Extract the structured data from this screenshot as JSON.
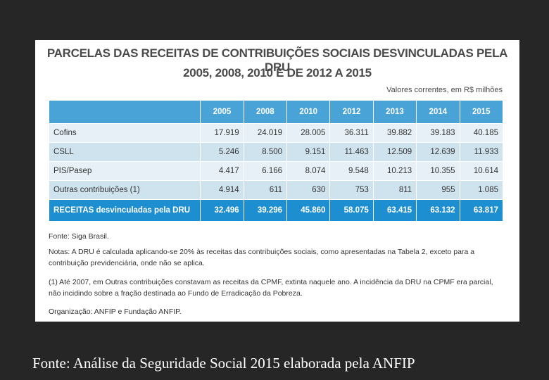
{
  "table": {
    "title_line1": "PARCELAS DAS RECEITAS DE CONTRIBUIÇÕES SOCIAIS DESVINCULADAS PELA DRU",
    "title_line2": "2005, 2008, 2010 E DE 2012 A 2015",
    "units": "Valores correntes, em R$ milhões",
    "years": [
      "2005",
      "2008",
      "2010",
      "2012",
      "2013",
      "2014",
      "2015"
    ],
    "rows": [
      {
        "label": "Cofins",
        "values": [
          "17.919",
          "24.019",
          "28.005",
          "36.311",
          "39.882",
          "39.183",
          "40.185"
        ]
      },
      {
        "label": "CSLL",
        "values": [
          "5.246",
          "8.500",
          "9.151",
          "11.463",
          "12.509",
          "12.639",
          "11.933"
        ]
      },
      {
        "label": "PIS/Pasep",
        "values": [
          "4.417",
          "6.166",
          "8.074",
          "9.548",
          "10.213",
          "10.355",
          "10.614"
        ]
      },
      {
        "label": "Outras contribuições (1)",
        "values": [
          "4.914",
          "611",
          "630",
          "753",
          "811",
          "955",
          "1.085"
        ]
      }
    ],
    "total": {
      "label": "RECEITAS desvinculadas pela DRU",
      "values": [
        "32.496",
        "39.296",
        "45.860",
        "58.075",
        "63.415",
        "63.132",
        "63.817"
      ]
    }
  },
  "notes": {
    "source": "Fonte: Siga Brasil.",
    "note": "Notas: A DRU é calculada aplicando-se 20% às receitas das contribuições sociais, como apresentadas na Tabela 2, exceto para a contribuição previdenciária, onde não se aplica.",
    "footnote": "(1) Até 2007, em Outras contribuições constavam as receitas da CPMF, extinta naquele ano. A incidência da DRU na CPMF era parcial, não incidindo sobre a fração destinada ao Fundo de Erradicação da Pobreza.",
    "org": "Organização: ANFIP e Fundação ANFIP."
  },
  "caption": "Fonte: Análise da Seguridade Social 2015 elaborada pela ANFIP",
  "colors": {
    "header": "#4aa3d6",
    "total": "#1d8fd0",
    "row_light": "#e6f0f6",
    "row_dark": "#cfe3ef",
    "background": "#262626"
  }
}
